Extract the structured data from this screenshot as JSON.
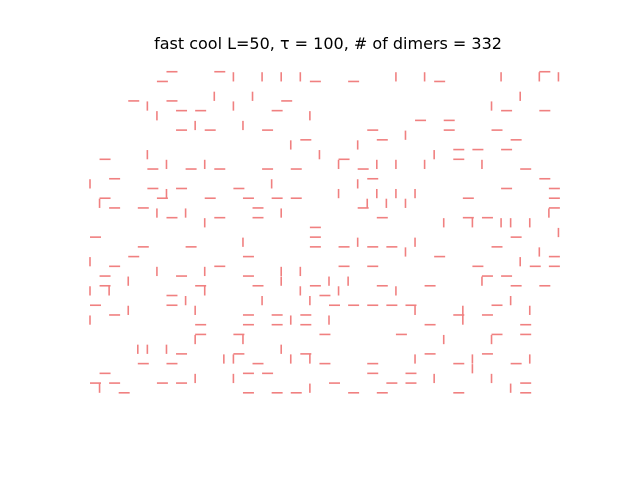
{
  "chart_data": {
    "type": "scatter",
    "title": "fast cool L=50, τ = 100, # of dimers = 332",
    "xlabel": "",
    "ylabel": "",
    "axes_visible": false,
    "grid": false,
    "lattice_size": 50,
    "tau": 100,
    "dimer_count": 332,
    "dimer_color": "#f08080",
    "xlim": [
      0,
      50
    ],
    "ylim": [
      0,
      37
    ],
    "note_orientation": "h = horizontal dimer, v = vertical dimer",
    "dimers": [
      {
        "o": "h",
        "x": 8,
        "y": 36
      },
      {
        "o": "h",
        "x": 13,
        "y": 36
      },
      {
        "o": "v",
        "x": 15,
        "y": 35
      },
      {
        "o": "v",
        "x": 18,
        "y": 35
      },
      {
        "o": "v",
        "x": 20,
        "y": 35
      },
      {
        "o": "v",
        "x": 22,
        "y": 35
      },
      {
        "o": "h",
        "x": 23,
        "y": 35
      },
      {
        "o": "h",
        "x": 27,
        "y": 35
      },
      {
        "o": "v",
        "x": 32,
        "y": 35
      },
      {
        "o": "v",
        "x": 35,
        "y": 35
      },
      {
        "o": "h",
        "x": 36,
        "y": 35
      },
      {
        "o": "v",
        "x": 43,
        "y": 35
      },
      {
        "o": "v",
        "x": 47,
        "y": 35
      },
      {
        "o": "h",
        "x": 47,
        "y": 36
      },
      {
        "o": "h",
        "x": 7,
        "y": 35
      },
      {
        "o": "v",
        "x": 49,
        "y": 35
      },
      {
        "o": "h",
        "x": 4,
        "y": 33
      },
      {
        "o": "v",
        "x": 6,
        "y": 32
      },
      {
        "o": "h",
        "x": 8,
        "y": 33
      },
      {
        "o": "h",
        "x": 9,
        "y": 32
      },
      {
        "o": "h",
        "x": 11,
        "y": 32
      },
      {
        "o": "v",
        "x": 13,
        "y": 33
      },
      {
        "o": "v",
        "x": 15,
        "y": 32
      },
      {
        "o": "v",
        "x": 17,
        "y": 33
      },
      {
        "o": "h",
        "x": 19,
        "y": 32
      },
      {
        "o": "h",
        "x": 20,
        "y": 33
      },
      {
        "o": "v",
        "x": 23,
        "y": 31
      },
      {
        "o": "h",
        "x": 34,
        "y": 31
      },
      {
        "o": "h",
        "x": 37,
        "y": 31
      },
      {
        "o": "v",
        "x": 42,
        "y": 32
      },
      {
        "o": "h",
        "x": 43,
        "y": 32
      },
      {
        "o": "v",
        "x": 45,
        "y": 33
      },
      {
        "o": "h",
        "x": 47,
        "y": 32
      },
      {
        "o": "v",
        "x": 7,
        "y": 31
      },
      {
        "o": "v",
        "x": 11,
        "y": 30
      },
      {
        "o": "h",
        "x": 9,
        "y": 30
      },
      {
        "o": "h",
        "x": 12,
        "y": 30
      },
      {
        "o": "v",
        "x": 16,
        "y": 30
      },
      {
        "o": "h",
        "x": 18,
        "y": 30
      },
      {
        "o": "h",
        "x": 22,
        "y": 29
      },
      {
        "o": "v",
        "x": 21,
        "y": 28
      },
      {
        "o": "h",
        "x": 29,
        "y": 30
      },
      {
        "o": "h",
        "x": 30,
        "y": 29
      },
      {
        "o": "v",
        "x": 28,
        "y": 28
      },
      {
        "o": "v",
        "x": 33,
        "y": 29
      },
      {
        "o": "h",
        "x": 37,
        "y": 30
      },
      {
        "o": "h",
        "x": 42,
        "y": 30
      },
      {
        "o": "h",
        "x": 44,
        "y": 29
      },
      {
        "o": "h",
        "x": 38,
        "y": 28
      },
      {
        "o": "h",
        "x": 40,
        "y": 28
      },
      {
        "o": "h",
        "x": 43,
        "y": 28
      },
      {
        "o": "h",
        "x": 1,
        "y": 27
      },
      {
        "o": "v",
        "x": 6,
        "y": 27
      },
      {
        "o": "h",
        "x": 6,
        "y": 26
      },
      {
        "o": "v",
        "x": 8,
        "y": 26
      },
      {
        "o": "h",
        "x": 10,
        "y": 26
      },
      {
        "o": "v",
        "x": 12,
        "y": 26
      },
      {
        "o": "h",
        "x": 13,
        "y": 26
      },
      {
        "o": "h",
        "x": 18,
        "y": 26
      },
      {
        "o": "h",
        "x": 21,
        "y": 26
      },
      {
        "o": "v",
        "x": 24,
        "y": 27
      },
      {
        "o": "v",
        "x": 26,
        "y": 26
      },
      {
        "o": "h",
        "x": 26,
        "y": 27
      },
      {
        "o": "h",
        "x": 28,
        "y": 26
      },
      {
        "o": "h",
        "x": 29,
        "y": 25
      },
      {
        "o": "v",
        "x": 30,
        "y": 26
      },
      {
        "o": "v",
        "x": 32,
        "y": 26
      },
      {
        "o": "v",
        "x": 35,
        "y": 26
      },
      {
        "o": "v",
        "x": 36,
        "y": 27
      },
      {
        "o": "h",
        "x": 38,
        "y": 27
      },
      {
        "o": "v",
        "x": 41,
        "y": 26
      },
      {
        "o": "h",
        "x": 45,
        "y": 26
      },
      {
        "o": "h",
        "x": 1,
        "y": 23
      },
      {
        "o": "h",
        "x": 2,
        "y": 25
      },
      {
        "o": "v",
        "x": 0,
        "y": 24
      },
      {
        "o": "h",
        "x": 6,
        "y": 24
      },
      {
        "o": "h",
        "x": 7,
        "y": 23
      },
      {
        "o": "v",
        "x": 8,
        "y": 23
      },
      {
        "o": "h",
        "x": 9,
        "y": 24
      },
      {
        "o": "h",
        "x": 12,
        "y": 23
      },
      {
        "o": "h",
        "x": 15,
        "y": 24
      },
      {
        "o": "h",
        "x": 16,
        "y": 23
      },
      {
        "o": "h",
        "x": 17,
        "y": 22
      },
      {
        "o": "h",
        "x": 19,
        "y": 23
      },
      {
        "o": "h",
        "x": 21,
        "y": 23
      },
      {
        "o": "v",
        "x": 19,
        "y": 24
      },
      {
        "o": "v",
        "x": 26,
        "y": 23
      },
      {
        "o": "v",
        "x": 28,
        "y": 24
      },
      {
        "o": "v",
        "x": 29,
        "y": 22
      },
      {
        "o": "v",
        "x": 30,
        "y": 23
      },
      {
        "o": "v",
        "x": 31,
        "y": 22
      },
      {
        "o": "v",
        "x": 32,
        "y": 23
      },
      {
        "o": "v",
        "x": 33,
        "y": 22
      },
      {
        "o": "h",
        "x": 28,
        "y": 22
      },
      {
        "o": "h",
        "x": 30,
        "y": 21
      },
      {
        "o": "v",
        "x": 34,
        "y": 23
      },
      {
        "o": "h",
        "x": 39,
        "y": 23
      },
      {
        "o": "h",
        "x": 43,
        "y": 24
      },
      {
        "o": "h",
        "x": 47,
        "y": 25
      },
      {
        "o": "h",
        "x": 48,
        "y": 24
      },
      {
        "o": "h",
        "x": 48,
        "y": 23
      },
      {
        "o": "h",
        "x": 48,
        "y": 22
      },
      {
        "o": "v",
        "x": 48,
        "y": 21
      },
      {
        "o": "v",
        "x": 1,
        "y": 22
      },
      {
        "o": "h",
        "x": 2,
        "y": 22
      },
      {
        "o": "h",
        "x": 5,
        "y": 22
      },
      {
        "o": "v",
        "x": 7,
        "y": 21
      },
      {
        "o": "h",
        "x": 8,
        "y": 21
      },
      {
        "o": "v",
        "x": 10,
        "y": 21
      },
      {
        "o": "h",
        "x": 13,
        "y": 21
      },
      {
        "o": "v",
        "x": 12,
        "y": 20
      },
      {
        "o": "h",
        "x": 17,
        "y": 21
      },
      {
        "o": "v",
        "x": 20,
        "y": 21
      },
      {
        "o": "h",
        "x": 23,
        "y": 20
      },
      {
        "o": "v",
        "x": 37,
        "y": 20
      },
      {
        "o": "h",
        "x": 39,
        "y": 21
      },
      {
        "o": "v",
        "x": 40,
        "y": 20
      },
      {
        "o": "h",
        "x": 41,
        "y": 21
      },
      {
        "o": "v",
        "x": 43,
        "y": 20
      },
      {
        "o": "v",
        "x": 44,
        "y": 20
      },
      {
        "o": "v",
        "x": 46,
        "y": 20
      },
      {
        "o": "h",
        "x": 0,
        "y": 19
      },
      {
        "o": "h",
        "x": 5,
        "y": 18
      },
      {
        "o": "h",
        "x": 10,
        "y": 18
      },
      {
        "o": "v",
        "x": 16,
        "y": 18
      },
      {
        "o": "h",
        "x": 16,
        "y": 17
      },
      {
        "o": "h",
        "x": 23,
        "y": 18
      },
      {
        "o": "h",
        "x": 23,
        "y": 19
      },
      {
        "o": "h",
        "x": 26,
        "y": 18
      },
      {
        "o": "v",
        "x": 28,
        "y": 18
      },
      {
        "o": "h",
        "x": 29,
        "y": 18
      },
      {
        "o": "h",
        "x": 31,
        "y": 18
      },
      {
        "o": "v",
        "x": 33,
        "y": 17
      },
      {
        "o": "v",
        "x": 34,
        "y": 18
      },
      {
        "o": "h",
        "x": 36,
        "y": 17
      },
      {
        "o": "h",
        "x": 42,
        "y": 18
      },
      {
        "o": "h",
        "x": 44,
        "y": 19
      },
      {
        "o": "v",
        "x": 47,
        "y": 17
      },
      {
        "o": "v",
        "x": 49,
        "y": 19
      },
      {
        "o": "h",
        "x": 48,
        "y": 17
      },
      {
        "o": "h",
        "x": 4,
        "y": 17
      },
      {
        "o": "v",
        "x": 0,
        "y": 16
      },
      {
        "o": "h",
        "x": 1,
        "y": 15
      },
      {
        "o": "h",
        "x": 2,
        "y": 16
      },
      {
        "o": "v",
        "x": 4,
        "y": 14
      },
      {
        "o": "v",
        "x": 7,
        "y": 15
      },
      {
        "o": "h",
        "x": 9,
        "y": 15
      },
      {
        "o": "v",
        "x": 12,
        "y": 15
      },
      {
        "o": "h",
        "x": 13,
        "y": 16
      },
      {
        "o": "h",
        "x": 16,
        "y": 15
      },
      {
        "o": "v",
        "x": 20,
        "y": 15
      },
      {
        "o": "v",
        "x": 22,
        "y": 15
      },
      {
        "o": "h",
        "x": 26,
        "y": 16
      },
      {
        "o": "h",
        "x": 29,
        "y": 16
      },
      {
        "o": "h",
        "x": 40,
        "y": 16
      },
      {
        "o": "h",
        "x": 41,
        "y": 15
      },
      {
        "o": "h",
        "x": 43,
        "y": 15
      },
      {
        "o": "v",
        "x": 45,
        "y": 16
      },
      {
        "o": "h",
        "x": 46,
        "y": 16
      },
      {
        "o": "h",
        "x": 48,
        "y": 16
      },
      {
        "o": "v",
        "x": 0,
        "y": 13
      },
      {
        "o": "h",
        "x": 1,
        "y": 14
      },
      {
        "o": "v",
        "x": 2,
        "y": 13
      },
      {
        "o": "v",
        "x": 12,
        "y": 13
      },
      {
        "o": "h",
        "x": 11,
        "y": 14
      },
      {
        "o": "h",
        "x": 17,
        "y": 14
      },
      {
        "o": "v",
        "x": 20,
        "y": 14
      },
      {
        "o": "v",
        "x": 22,
        "y": 13
      },
      {
        "o": "h",
        "x": 23,
        "y": 14
      },
      {
        "o": "v",
        "x": 25,
        "y": 14
      },
      {
        "o": "h",
        "x": 24,
        "y": 13
      },
      {
        "o": "v",
        "x": 26,
        "y": 13
      },
      {
        "o": "v",
        "x": 27,
        "y": 14
      },
      {
        "o": "h",
        "x": 30,
        "y": 14
      },
      {
        "o": "v",
        "x": 32,
        "y": 13
      },
      {
        "o": "h",
        "x": 35,
        "y": 14
      },
      {
        "o": "v",
        "x": 41,
        "y": 14
      },
      {
        "o": "h",
        "x": 44,
        "y": 14
      },
      {
        "o": "h",
        "x": 47,
        "y": 14
      },
      {
        "o": "h",
        "x": 0,
        "y": 12
      },
      {
        "o": "v",
        "x": 4,
        "y": 11
      },
      {
        "o": "h",
        "x": 8,
        "y": 12
      },
      {
        "o": "h",
        "x": 8,
        "y": 13
      },
      {
        "o": "v",
        "x": 10,
        "y": 12
      },
      {
        "o": "v",
        "x": 11,
        "y": 11
      },
      {
        "o": "h",
        "x": 16,
        "y": 11
      },
      {
        "o": "v",
        "x": 18,
        "y": 12
      },
      {
        "o": "h",
        "x": 19,
        "y": 11
      },
      {
        "o": "h",
        "x": 22,
        "y": 11
      },
      {
        "o": "v",
        "x": 23,
        "y": 12
      },
      {
        "o": "h",
        "x": 25,
        "y": 12
      },
      {
        "o": "h",
        "x": 27,
        "y": 12
      },
      {
        "o": "h",
        "x": 29,
        "y": 12
      },
      {
        "o": "h",
        "x": 31,
        "y": 12
      },
      {
        "o": "h",
        "x": 33,
        "y": 12
      },
      {
        "o": "v",
        "x": 34,
        "y": 11
      },
      {
        "o": "h",
        "x": 38,
        "y": 11
      },
      {
        "o": "v",
        "x": 39,
        "y": 11
      },
      {
        "o": "h",
        "x": 41,
        "y": 11
      },
      {
        "o": "h",
        "x": 42,
        "y": 12
      },
      {
        "o": "v",
        "x": 44,
        "y": 12
      },
      {
        "o": "h",
        "x": 45,
        "y": 10
      },
      {
        "o": "v",
        "x": 46,
        "y": 11
      },
      {
        "o": "v",
        "x": 0,
        "y": 10
      },
      {
        "o": "h",
        "x": 2,
        "y": 11
      },
      {
        "o": "h",
        "x": 11,
        "y": 10
      },
      {
        "o": "h",
        "x": 16,
        "y": 10
      },
      {
        "o": "h",
        "x": 19,
        "y": 10
      },
      {
        "o": "h",
        "x": 22,
        "y": 10
      },
      {
        "o": "v",
        "x": 21,
        "y": 10
      },
      {
        "o": "v",
        "x": 25,
        "y": 10
      },
      {
        "o": "h",
        "x": 35,
        "y": 10
      },
      {
        "o": "v",
        "x": 39,
        "y": 10
      },
      {
        "o": "h",
        "x": 42,
        "y": 9
      },
      {
        "o": "v",
        "x": 42,
        "y": 8
      },
      {
        "o": "h",
        "x": 45,
        "y": 9
      },
      {
        "o": "h",
        "x": 11,
        "y": 9
      },
      {
        "o": "v",
        "x": 11,
        "y": 8
      },
      {
        "o": "h",
        "x": 15,
        "y": 9
      },
      {
        "o": "v",
        "x": 16,
        "y": 8
      },
      {
        "o": "h",
        "x": 24,
        "y": 9
      },
      {
        "o": "h",
        "x": 32,
        "y": 9
      },
      {
        "o": "v",
        "x": 37,
        "y": 8
      },
      {
        "o": "v",
        "x": 5,
        "y": 7
      },
      {
        "o": "v",
        "x": 6,
        "y": 7
      },
      {
        "o": "v",
        "x": 8,
        "y": 7
      },
      {
        "o": "h",
        "x": 9,
        "y": 7
      },
      {
        "o": "h",
        "x": 5,
        "y": 6
      },
      {
        "o": "h",
        "x": 8,
        "y": 6
      },
      {
        "o": "v",
        "x": 14,
        "y": 6
      },
      {
        "o": "v",
        "x": 15,
        "y": 6
      },
      {
        "o": "h",
        "x": 15,
        "y": 7
      },
      {
        "o": "h",
        "x": 17,
        "y": 6
      },
      {
        "o": "v",
        "x": 20,
        "y": 7
      },
      {
        "o": "v",
        "x": 21,
        "y": 6
      },
      {
        "o": "h",
        "x": 22,
        "y": 7
      },
      {
        "o": "h",
        "x": 24,
        "y": 6
      },
      {
        "o": "v",
        "x": 23,
        "y": 6
      },
      {
        "o": "h",
        "x": 29,
        "y": 6
      },
      {
        "o": "v",
        "x": 34,
        "y": 6
      },
      {
        "o": "h",
        "x": 33,
        "y": 5
      },
      {
        "o": "h",
        "x": 35,
        "y": 7
      },
      {
        "o": "h",
        "x": 38,
        "y": 6
      },
      {
        "o": "v",
        "x": 40,
        "y": 6
      },
      {
        "o": "h",
        "x": 41,
        "y": 7
      },
      {
        "o": "h",
        "x": 44,
        "y": 6
      },
      {
        "o": "v",
        "x": 46,
        "y": 6
      },
      {
        "o": "h",
        "x": 1,
        "y": 5
      },
      {
        "o": "h",
        "x": 0,
        "y": 4
      },
      {
        "o": "h",
        "x": 2,
        "y": 4
      },
      {
        "o": "v",
        "x": 1,
        "y": 3
      },
      {
        "o": "h",
        "x": 7,
        "y": 4
      },
      {
        "o": "h",
        "x": 9,
        "y": 4
      },
      {
        "o": "v",
        "x": 11,
        "y": 4
      },
      {
        "o": "v",
        "x": 15,
        "y": 4
      },
      {
        "o": "h",
        "x": 16,
        "y": 5
      },
      {
        "o": "h",
        "x": 18,
        "y": 5
      },
      {
        "o": "h",
        "x": 16,
        "y": 3
      },
      {
        "o": "h",
        "x": 19,
        "y": 3
      },
      {
        "o": "v",
        "x": 23,
        "y": 3
      },
      {
        "o": "h",
        "x": 25,
        "y": 4
      },
      {
        "o": "h",
        "x": 21,
        "y": 3
      },
      {
        "o": "h",
        "x": 27,
        "y": 3
      },
      {
        "o": "h",
        "x": 29,
        "y": 5
      },
      {
        "o": "h",
        "x": 31,
        "y": 4
      },
      {
        "o": "h",
        "x": 30,
        "y": 3
      },
      {
        "o": "h",
        "x": 33,
        "y": 4
      },
      {
        "o": "v",
        "x": 36,
        "y": 4
      },
      {
        "o": "h",
        "x": 38,
        "y": 3
      },
      {
        "o": "v",
        "x": 42,
        "y": 4
      },
      {
        "o": "h",
        "x": 45,
        "y": 4
      },
      {
        "o": "v",
        "x": 44,
        "y": 3
      },
      {
        "o": "h",
        "x": 45,
        "y": 3
      },
      {
        "o": "v",
        "x": 40,
        "y": 5
      },
      {
        "o": "h",
        "x": 3,
        "y": 3
      }
    ]
  }
}
